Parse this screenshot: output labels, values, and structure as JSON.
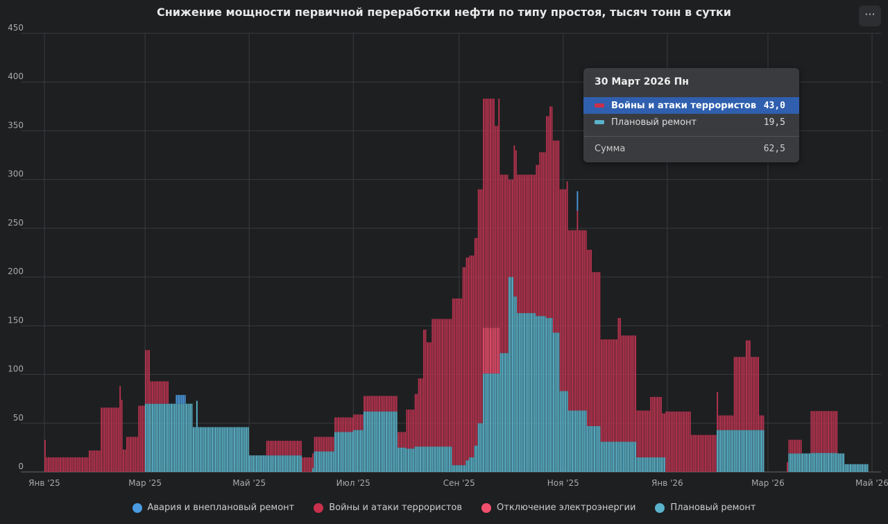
{
  "title": "Снижение мощности первичной переработки нефти по типу простоя, тысяч тонн в сутки",
  "menu_label": "···",
  "colors": {
    "accident": "#4b9be0",
    "war": "#b9334f",
    "electricity": "#ee4d6c",
    "planned": "#5ab3cb"
  },
  "chart_data": {
    "type": "bar",
    "stacked": true,
    "title": "Снижение мощности первичной переработки нефти по типу простоя, тысяч тонн в сутки",
    "xlabel": "",
    "ylabel": "",
    "ylim": [
      0,
      450
    ],
    "yticks": [
      "0",
      "50",
      "100",
      "150",
      "200",
      "250",
      "300",
      "350",
      "400",
      "450"
    ],
    "x_start_date": "2025-01-01",
    "x_unit": "day",
    "xlim_days": [
      0,
      485
    ],
    "xticks": [
      {
        "label": "Янв '25",
        "day": 0
      },
      {
        "label": "Мар '25",
        "day": 59
      },
      {
        "label": "Май '25",
        "day": 120
      },
      {
        "label": "Июл '25",
        "day": 181
      },
      {
        "label": "Сен '25",
        "day": 243
      },
      {
        "label": "Ноя '25",
        "day": 304
      },
      {
        "label": "Янв '26",
        "day": 365
      },
      {
        "label": "Мар '26",
        "day": 424
      },
      {
        "label": "Май '26",
        "day": 485
      }
    ],
    "grid": true,
    "legend_position": "bottom",
    "series_names": [
      "Авария и внеплановый ремонт",
      "Войны и атаки террористов",
      "Отключение электроэнергии",
      "Плановый ремонт"
    ],
    "segment_fields": [
      "start_day",
      "end_day",
      "accident",
      "war",
      "electricity",
      "planned"
    ],
    "segments": [
      [
        0,
        1,
        0,
        33,
        0,
        0
      ],
      [
        1,
        26,
        0,
        15,
        0,
        0
      ],
      [
        26,
        33,
        0,
        22,
        0,
        0
      ],
      [
        33,
        44,
        0,
        66,
        0,
        0
      ],
      [
        44,
        45,
        0,
        88,
        0,
        0
      ],
      [
        45,
        46,
        0,
        74,
        0,
        0
      ],
      [
        46,
        48,
        0,
        23,
        0,
        0
      ],
      [
        48,
        55,
        0,
        36,
        0,
        0
      ],
      [
        55,
        59,
        0,
        68,
        0,
        0
      ],
      [
        59,
        62,
        0,
        55,
        0,
        70
      ],
      [
        62,
        73,
        0,
        23,
        0,
        70
      ],
      [
        73,
        77,
        0,
        0,
        0,
        70
      ],
      [
        77,
        83,
        9,
        0,
        0,
        70
      ],
      [
        83,
        87,
        0,
        0,
        0,
        70
      ],
      [
        87,
        89,
        0,
        0,
        0,
        46
      ],
      [
        89,
        90,
        0,
        0,
        0,
        73
      ],
      [
        90,
        120,
        0,
        0,
        0,
        46
      ],
      [
        120,
        130,
        0,
        0,
        0,
        17
      ],
      [
        130,
        151,
        0,
        15,
        0,
        17
      ],
      [
        151,
        157,
        0,
        15,
        0,
        0
      ],
      [
        157,
        158,
        0,
        15,
        0,
        4
      ],
      [
        158,
        170,
        0,
        15,
        0,
        21
      ],
      [
        170,
        181,
        0,
        15,
        0,
        41
      ],
      [
        181,
        187,
        0,
        16,
        0,
        43
      ],
      [
        187,
        207,
        0,
        16,
        0,
        62
      ],
      [
        207,
        212,
        0,
        16,
        0,
        25
      ],
      [
        212,
        217,
        0,
        40,
        0,
        24
      ],
      [
        217,
        219,
        0,
        54,
        0,
        26
      ],
      [
        219,
        222,
        0,
        70,
        0,
        26
      ],
      [
        222,
        224,
        0,
        120,
        0,
        26
      ],
      [
        224,
        227,
        0,
        107,
        0,
        26
      ],
      [
        227,
        239,
        0,
        131,
        0,
        26
      ],
      [
        239,
        245,
        0,
        171,
        0,
        7
      ],
      [
        245,
        247,
        0,
        203,
        0,
        7
      ],
      [
        247,
        249,
        0,
        208,
        0,
        12
      ],
      [
        249,
        252,
        0,
        207,
        0,
        15
      ],
      [
        252,
        254,
        0,
        213,
        0,
        27
      ],
      [
        254,
        257,
        0,
        240,
        0,
        50
      ],
      [
        257,
        264,
        0,
        235,
        47,
        101
      ],
      [
        264,
        266,
        0,
        207,
        47,
        101
      ],
      [
        266,
        267,
        0,
        235,
        47,
        101
      ],
      [
        267,
        272,
        0,
        183,
        0,
        122
      ],
      [
        272,
        275,
        0,
        100,
        0,
        200
      ],
      [
        275,
        276,
        0,
        155,
        0,
        180
      ],
      [
        276,
        277,
        0,
        150,
        0,
        180
      ],
      [
        277,
        288,
        0,
        142,
        0,
        163
      ],
      [
        288,
        290,
        0,
        155,
        0,
        160
      ],
      [
        290,
        294,
        0,
        168,
        0,
        160
      ],
      [
        294,
        296,
        0,
        207,
        0,
        158
      ],
      [
        296,
        298,
        0,
        217,
        0,
        158
      ],
      [
        298,
        302,
        0,
        197,
        0,
        143
      ],
      [
        302,
        306,
        0,
        207,
        0,
        83
      ],
      [
        306,
        307,
        0,
        215,
        0,
        83
      ],
      [
        307,
        312,
        0,
        185,
        0,
        63
      ],
      [
        312,
        313,
        20,
        205,
        0,
        63
      ],
      [
        313,
        318,
        0,
        185,
        0,
        63
      ],
      [
        318,
        321,
        0,
        181,
        0,
        47
      ],
      [
        321,
        326,
        0,
        158,
        0,
        47
      ],
      [
        326,
        336,
        0,
        105,
        0,
        31
      ],
      [
        336,
        338,
        0,
        127,
        0,
        31
      ],
      [
        338,
        347,
        0,
        109,
        0,
        31
      ],
      [
        347,
        355,
        0,
        48,
        0,
        15
      ],
      [
        355,
        362,
        0,
        62,
        0,
        15
      ],
      [
        362,
        364,
        0,
        45,
        0,
        15
      ],
      [
        364,
        379,
        0,
        62,
        0,
        0
      ],
      [
        379,
        394,
        0,
        38,
        0,
        0
      ],
      [
        394,
        395,
        0,
        39,
        0,
        43
      ],
      [
        395,
        404,
        0,
        15,
        0,
        43
      ],
      [
        404,
        411,
        0,
        75,
        0,
        43
      ],
      [
        411,
        414,
        0,
        92,
        0,
        43
      ],
      [
        414,
        419,
        0,
        75,
        0,
        43
      ],
      [
        419,
        422,
        0,
        15,
        0,
        43
      ],
      [
        435,
        436,
        0,
        10,
        0,
        0
      ],
      [
        436,
        444,
        0,
        14,
        0,
        19
      ],
      [
        444,
        449,
        0,
        0,
        0,
        19
      ],
      [
        449,
        465,
        0,
        43,
        0,
        19.5
      ],
      [
        465,
        469,
        0,
        0,
        0,
        19
      ],
      [
        469,
        483,
        0,
        0,
        0,
        8
      ]
    ]
  },
  "tooltip": {
    "date": "30 Март 2026 Пн",
    "rows": [
      {
        "label": "Войны и атаки террористов",
        "value": "43,0"
      },
      {
        "label": "Плановый ремонт",
        "value": "19,5"
      }
    ],
    "sum_label": "Сумма",
    "sum_value": "62,5"
  },
  "legend": [
    {
      "label": "Авария и внеплановый ремонт"
    },
    {
      "label": "Войны и атаки террористов"
    },
    {
      "label": "Отключение электроэнергии"
    },
    {
      "label": "Плановый ремонт"
    }
  ]
}
